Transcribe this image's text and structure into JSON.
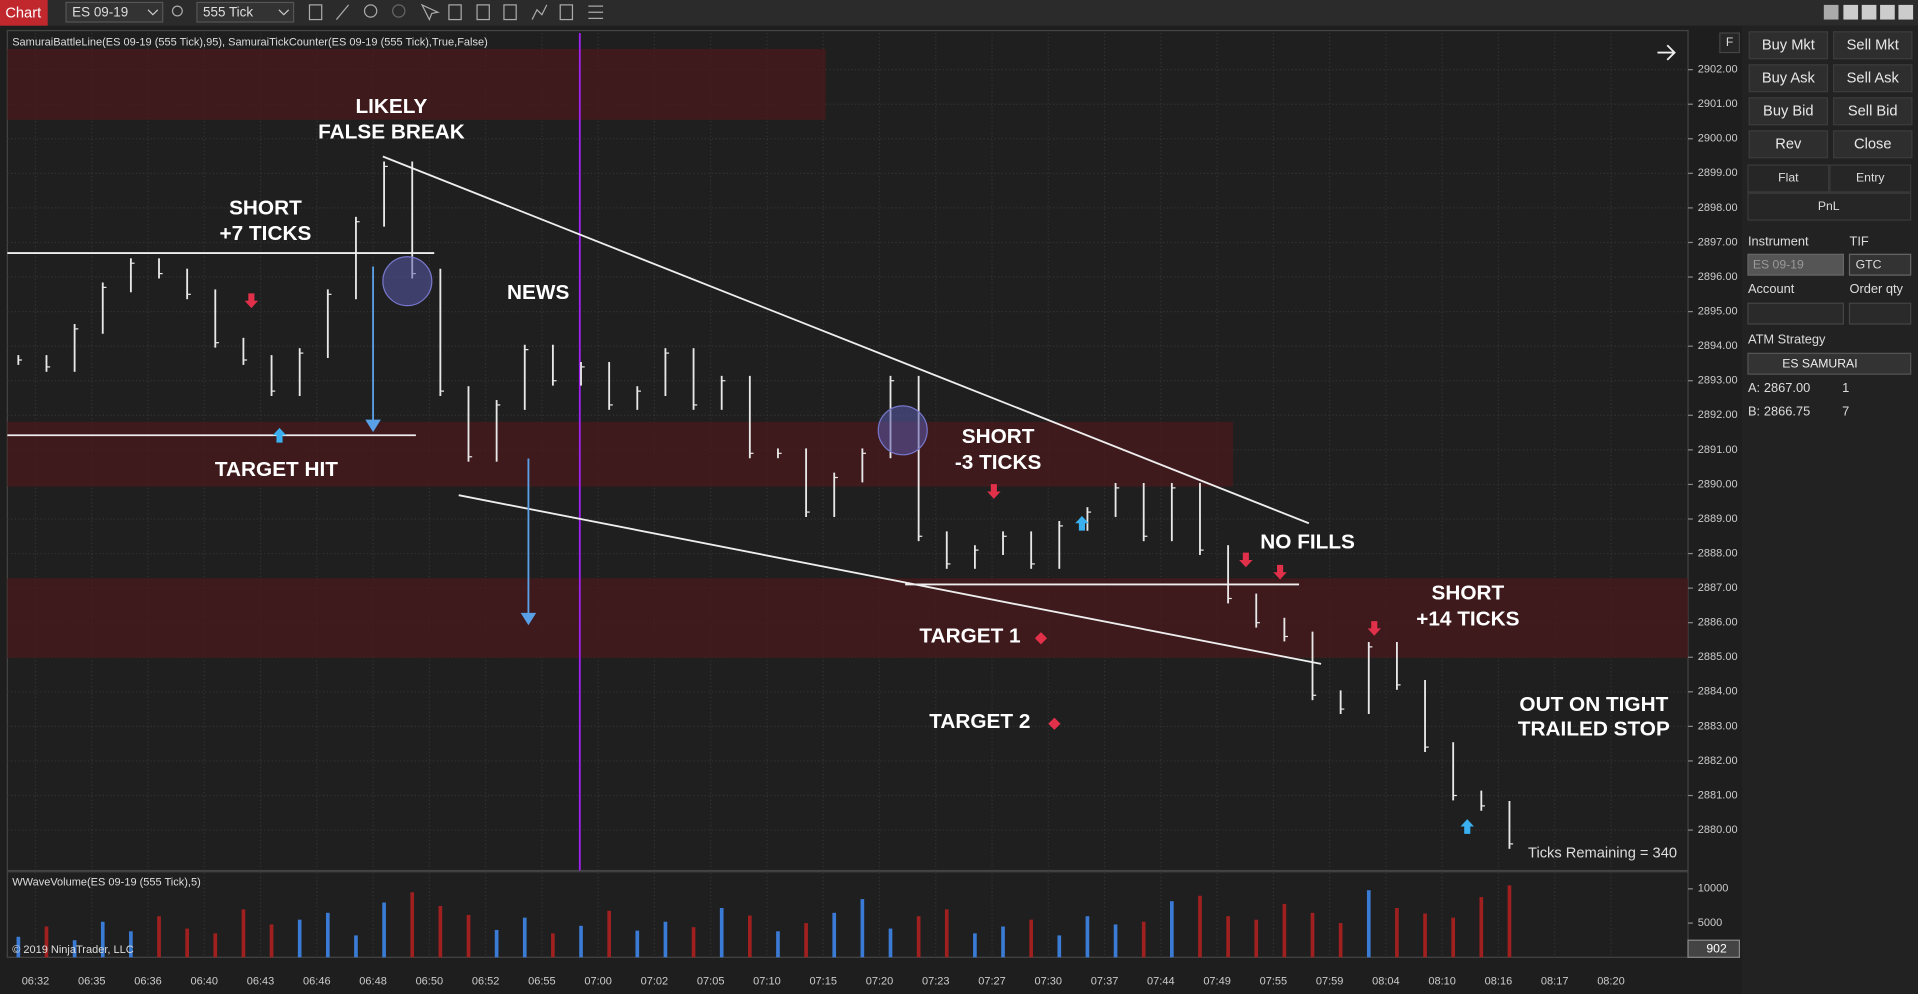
{
  "toolbar": {
    "tab": "Chart",
    "instrument": "ES 09-19",
    "interval": "555 Tick"
  },
  "chart": {
    "type": "bar",
    "indicator_label": "SamuraiBattleLine(ES 09-19 (555 Tick),95), SamuraiTickCounter(ES 09-19 (555 Tick),True,False)",
    "volume_label": "WWaveVolume(ES 09-19 (555 Tick),5)",
    "copyright": "© 2019 NinjaTrader, LLC",
    "ticks_remaining": "Ticks Remaining = 340",
    "f_button": "F",
    "current_volume": 902,
    "annotations": [
      "LIKELY",
      "FALSE BREAK",
      "SHORT",
      "+7 TICKS",
      "NEWS",
      "TARGET HIT",
      "SHORT",
      "-3 TICKS",
      "NO FILLS",
      "TARGET 1",
      "TARGET 2",
      "SHORT",
      "+14 TICKS",
      "OUT ON TIGHT",
      "TRAILED STOP"
    ],
    "categories": [
      "06:32",
      "06:35",
      "06:36",
      "06:40",
      "06:43",
      "06:46",
      "06:48",
      "06:50",
      "06:52",
      "06:55",
      "07:00",
      "07:02",
      "07:05",
      "07:10",
      "07:15",
      "07:20",
      "07:23",
      "07:27",
      "07:30",
      "07:37",
      "07:44",
      "07:49",
      "07:55",
      "07:59",
      "08:04",
      "08:10",
      "08:16",
      "08:17",
      "08:20"
    ],
    "ylim": [
      2878.83,
      2903.06
    ],
    "yticks": [
      {
        "value": 2902,
        "label": "2902.00"
      },
      {
        "value": 2901,
        "label": "2901.00"
      },
      {
        "value": 2900,
        "label": "2900.00"
      },
      {
        "value": 2899,
        "label": "2899.00"
      },
      {
        "value": 2898,
        "label": "2898.00"
      },
      {
        "value": 2897,
        "label": "2897.00"
      },
      {
        "value": 2896,
        "label": "2896.00"
      },
      {
        "value": 2895,
        "label": "2895.00"
      },
      {
        "value": 2894,
        "label": "2894.00"
      },
      {
        "value": 2893,
        "label": "2893.00"
      },
      {
        "value": 2892,
        "label": "2892.00"
      },
      {
        "value": 2891,
        "label": "2891.00"
      },
      {
        "value": 2890,
        "label": "2890.00"
      },
      {
        "value": 2889,
        "label": "2889.00"
      },
      {
        "value": 2888,
        "label": "2888.00"
      },
      {
        "value": 2887,
        "label": "2887.00"
      },
      {
        "value": 2886,
        "label": "2886.00"
      },
      {
        "value": 2885,
        "label": "2885.00"
      },
      {
        "value": 2884,
        "label": "2884.00"
      },
      {
        "value": 2883,
        "label": "2883.00"
      },
      {
        "value": 2882,
        "label": "2882.00"
      },
      {
        "value": 2881,
        "label": "2881.00"
      },
      {
        "value": 2880,
        "label": "2880.00"
      }
    ],
    "grid": true,
    "price": {
      "name": "ES 09-19",
      "color": "#e8e8e8",
      "values": [
        2893.6,
        2893.4,
        2894.5,
        2895.7,
        2896.4,
        2896.1,
        2895.5,
        2894.1,
        2893.6,
        2892.7,
        2893.8,
        2895.5,
        2897.6,
        2899.2,
        2896.1,
        2892.7,
        2890.8,
        2892.3,
        2893.9,
        2893.0,
        2893.4,
        2892.3,
        2892.7,
        2893.8,
        2892.3,
        2893.0,
        2890.9,
        2890.9,
        2889.2,
        2890.2,
        2890.9,
        2893.0,
        2888.5,
        2887.7,
        2888.1,
        2888.5,
        2887.7,
        2888.8,
        2889.2,
        2889.9,
        2888.5,
        2889.9,
        2888.1,
        2886.7,
        2886.0,
        2885.6,
        2883.9,
        2883.5,
        2885.3,
        2884.2,
        2882.4,
        2881.0,
        2880.7,
        2879.6
      ]
    },
    "volume": {
      "up_color": "#3a7bd5",
      "down_color": "#a02020",
      "values": [
        3000,
        4500,
        2500,
        5200,
        3800,
        6000,
        4200,
        3500,
        7000,
        4800,
        5500,
        6500,
        3200,
        8000,
        9500,
        7500,
        6200,
        4000,
        5800,
        3500,
        4600,
        6800,
        3900,
        5200,
        4400,
        7200,
        6100,
        3800,
        5000,
        6500,
        8500,
        4200,
        6000,
        7000,
        3500,
        4500,
        5500,
        3200,
        6000,
        4800,
        5200,
        8200,
        9000,
        6000,
        5500,
        7800,
        6500,
        5000,
        9800,
        7200,
        6400,
        5800,
        8800,
        10500
      ]
    },
    "vlim": [
      0,
      12320
    ],
    "vticks": [
      10000,
      5000
    ]
  },
  "order_panel": {
    "buttons": [
      "Buy Mkt",
      "Sell Mkt",
      "Buy Ask",
      "Sell Ask",
      "Buy Bid",
      "Sell Bid",
      "Rev",
      "Close"
    ],
    "tabs": [
      "Flat",
      "Entry"
    ],
    "pnl": "PnL",
    "instrument_label": "Instrument",
    "tif_label": "TIF",
    "instrument": "ES 09-19",
    "tif": "GTC",
    "account_label": "Account",
    "qty_label": "Order qty",
    "atm_label": "ATM Strategy",
    "atm_strategy": "ES SAMURAI",
    "rows": [
      {
        "label": "A:",
        "price": "2867.00",
        "qty": 1
      },
      {
        "label": "B:",
        "price": "2866.75",
        "qty": 7
      }
    ]
  }
}
